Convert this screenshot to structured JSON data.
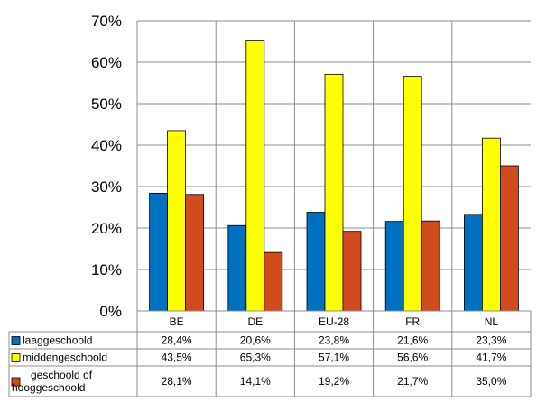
{
  "chart_data": {
    "type": "bar",
    "categories": [
      "BE",
      "DE",
      "EU-28",
      "FR",
      "NL"
    ],
    "ylim": [
      0,
      70
    ],
    "yticks": [
      "0%",
      "10%",
      "20%",
      "30%",
      "40%",
      "50%",
      "60%",
      "70%"
    ],
    "grid": true,
    "legend": "data-table",
    "series": [
      {
        "name": "laaggeschoold",
        "color": "#0070C0",
        "values": [
          28.4,
          20.6,
          23.8,
          21.6,
          23.3
        ],
        "labels": [
          "28,4%",
          "20,6%",
          "23,8%",
          "21,6%",
          "23,3%"
        ]
      },
      {
        "name": "middengeschoold",
        "color": "#FFFF00",
        "values": [
          43.5,
          65.3,
          57.1,
          56.6,
          41.7
        ],
        "labels": [
          "43,5%",
          "65,3%",
          "57,1%",
          "56,6%",
          "41,7%"
        ]
      },
      {
        "name": "geschoold of hooggeschoold",
        "name_lines": [
          "geschoold of",
          "hooggeschoold"
        ],
        "color": "#D24B1E",
        "values": [
          28.1,
          14.1,
          19.2,
          21.7,
          35.0
        ],
        "labels": [
          "28,1%",
          "14,1%",
          "19,2%",
          "21,7%",
          "35,0%"
        ]
      }
    ]
  }
}
